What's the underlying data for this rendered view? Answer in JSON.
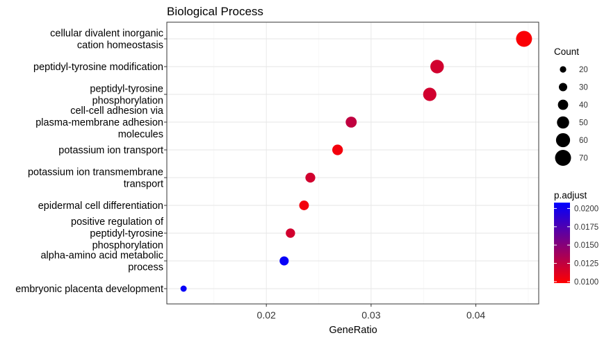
{
  "chart_data": {
    "type": "scatter",
    "title": "Biological Process",
    "xlabel": "GeneRatio",
    "ylabel": "",
    "xlim": [
      0.0105,
      0.046
    ],
    "x_ticks": [
      0.02,
      0.03,
      0.04
    ],
    "x_tick_labels": [
      "0.02",
      "0.03",
      "0.04"
    ],
    "grid": true,
    "categories": [
      {
        "label": [
          "cellular divalent inorganic",
          "cation homeostasis"
        ],
        "gene_ratio": 0.0446,
        "count": 70,
        "p_adjust": 0.01
      },
      {
        "label": [
          "peptidyl-tyrosine modification"
        ],
        "gene_ratio": 0.0363,
        "count": 57,
        "p_adjust": 0.0118
      },
      {
        "label": [
          "peptidyl-tyrosine",
          "phosphorylation"
        ],
        "gene_ratio": 0.0356,
        "count": 56,
        "p_adjust": 0.0118
      },
      {
        "label": [
          "cell-cell adhesion via",
          "plasma-membrane adhesion",
          "molecules"
        ],
        "gene_ratio": 0.0281,
        "count": 44,
        "p_adjust": 0.0125
      },
      {
        "label": [
          "potassium ion transport"
        ],
        "gene_ratio": 0.0268,
        "count": 42,
        "p_adjust": 0.0103
      },
      {
        "label": [
          "potassium ion transmembrane",
          "transport"
        ],
        "gene_ratio": 0.0242,
        "count": 38,
        "p_adjust": 0.0118
      },
      {
        "label": [
          "epidermal cell differentiation"
        ],
        "gene_ratio": 0.0236,
        "count": 37,
        "p_adjust": 0.0103
      },
      {
        "label": [
          "positive regulation of",
          "peptidyl-tyrosine",
          "phosphorylation"
        ],
        "gene_ratio": 0.0223,
        "count": 35,
        "p_adjust": 0.0118
      },
      {
        "label": [
          "alpha-amino acid metabolic",
          "process"
        ],
        "gene_ratio": 0.0217,
        "count": 34,
        "p_adjust": 0.0205
      },
      {
        "label": [
          "embryonic placenta development"
        ],
        "gene_ratio": 0.0121,
        "count": 19,
        "p_adjust": 0.0205
      }
    ],
    "size_legend": {
      "title": "Count",
      "values": [
        20,
        30,
        40,
        50,
        60,
        70
      ]
    },
    "color_legend": {
      "title": "p.adjust",
      "min": 0.0098,
      "max": 0.0208,
      "ticks": [
        0.02,
        0.0175,
        0.015,
        0.0125,
        0.01
      ],
      "tick_labels": [
        "0.0200",
        "0.0175",
        "0.0150",
        "0.0125",
        "0.0100"
      ],
      "low_color": "#FF0000",
      "high_color": "#0000FF"
    },
    "legend_placement": "right"
  }
}
